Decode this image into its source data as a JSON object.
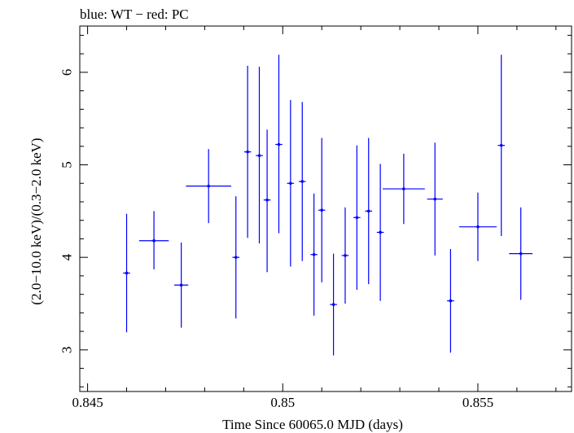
{
  "chart_data": {
    "type": "scatter",
    "title": "blue: WT − red: PC",
    "xlabel": "Time Since 60065.0 MJD (days)",
    "ylabel": "(2.0−10.0 keV)/(0.3−2.0 keV)",
    "xlim": [
      0.8448,
      0.8574
    ],
    "ylim": [
      2.55,
      6.5
    ],
    "xticks": [
      0.845,
      0.85,
      0.855
    ],
    "xtick_labels": [
      "0.845",
      "0.85",
      "0.855"
    ],
    "yticks": [
      3,
      4,
      5,
      6
    ],
    "ytick_labels": [
      "3",
      "4",
      "5",
      "6"
    ],
    "grid": false,
    "series": [
      {
        "color": "#0000ff",
        "points": [
          {
            "x": 0.846,
            "y": 3.83,
            "xerr": 9e-05,
            "ylo": 3.19,
            "yhi": 4.47
          },
          {
            "x": 0.8467,
            "y": 4.18,
            "xerr": 0.00038,
            "ylo": 3.87,
            "yhi": 4.5
          },
          {
            "x": 0.8474,
            "y": 3.7,
            "xerr": 0.00018,
            "ylo": 3.24,
            "yhi": 4.16
          },
          {
            "x": 0.8481,
            "y": 4.77,
            "xerr": 0.00058,
            "ylo": 4.37,
            "yhi": 5.17
          },
          {
            "x": 0.8488,
            "y": 4.0,
            "xerr": 9e-05,
            "ylo": 3.34,
            "yhi": 4.66
          },
          {
            "x": 0.8491,
            "y": 5.14,
            "xerr": 9e-05,
            "ylo": 4.21,
            "yhi": 6.07
          },
          {
            "x": 0.8494,
            "y": 5.1,
            "xerr": 9e-05,
            "ylo": 4.15,
            "yhi": 6.06
          },
          {
            "x": 0.8496,
            "y": 4.62,
            "xerr": 9e-05,
            "ylo": 3.84,
            "yhi": 5.38
          },
          {
            "x": 0.8499,
            "y": 5.22,
            "xerr": 9e-05,
            "ylo": 4.26,
            "yhi": 6.19
          },
          {
            "x": 0.8502,
            "y": 4.8,
            "xerr": 9e-05,
            "ylo": 3.9,
            "yhi": 5.7
          },
          {
            "x": 0.8505,
            "y": 4.82,
            "xerr": 9e-05,
            "ylo": 3.96,
            "yhi": 5.68
          },
          {
            "x": 0.8508,
            "y": 4.03,
            "xerr": 9e-05,
            "ylo": 3.37,
            "yhi": 4.69
          },
          {
            "x": 0.851,
            "y": 4.51,
            "xerr": 9e-05,
            "ylo": 3.73,
            "yhi": 5.29
          },
          {
            "x": 0.8513,
            "y": 3.49,
            "xerr": 9e-05,
            "ylo": 2.94,
            "yhi": 4.04
          },
          {
            "x": 0.8516,
            "y": 4.02,
            "xerr": 9e-05,
            "ylo": 3.5,
            "yhi": 4.54
          },
          {
            "x": 0.8519,
            "y": 4.43,
            "xerr": 9e-05,
            "ylo": 3.65,
            "yhi": 5.21
          },
          {
            "x": 0.8522,
            "y": 4.5,
            "xerr": 9e-05,
            "ylo": 3.71,
            "yhi": 5.29
          },
          {
            "x": 0.8525,
            "y": 4.27,
            "xerr": 9e-05,
            "ylo": 3.53,
            "yhi": 5.01
          },
          {
            "x": 0.8531,
            "y": 4.74,
            "xerr": 0.00054,
            "ylo": 4.36,
            "yhi": 5.12
          },
          {
            "x": 0.8539,
            "y": 4.63,
            "xerr": 0.0002,
            "ylo": 4.02,
            "yhi": 5.24
          },
          {
            "x": 0.8543,
            "y": 3.53,
            "xerr": 9e-05,
            "ylo": 2.97,
            "yhi": 4.09
          },
          {
            "x": 0.855,
            "y": 4.33,
            "xerr": 0.00048,
            "ylo": 3.96,
            "yhi": 4.7
          },
          {
            "x": 0.8556,
            "y": 5.21,
            "xerr": 9e-05,
            "ylo": 4.23,
            "yhi": 6.19
          },
          {
            "x": 0.8561,
            "y": 4.04,
            "xerr": 0.0003,
            "ylo": 3.54,
            "yhi": 4.54
          }
        ]
      }
    ]
  }
}
